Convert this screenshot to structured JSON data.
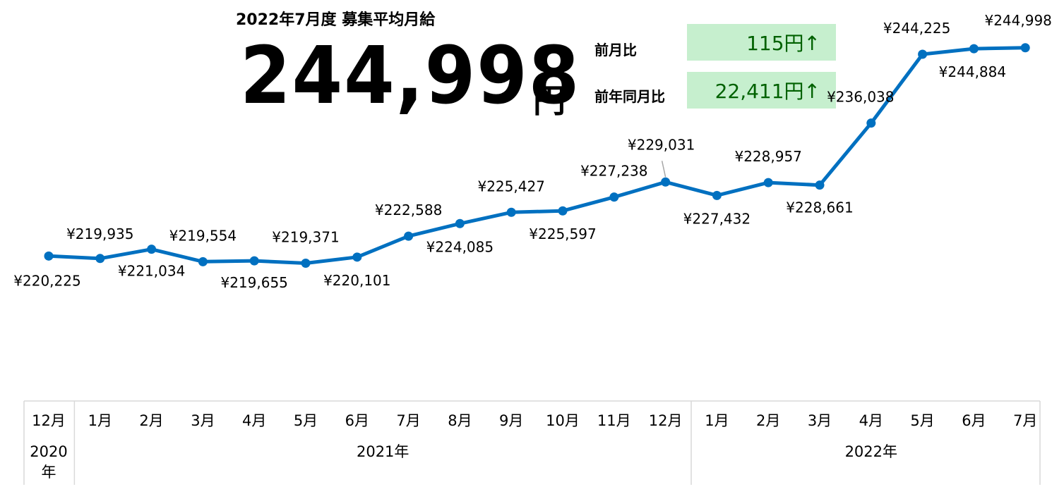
{
  "header": {
    "title": "2022年7月度 募集平均月給",
    "big_value": "244,998",
    "big_unit": "円"
  },
  "comparisons": {
    "mom_label": "前月比",
    "mom_value": "115円↑",
    "yoy_label": "前年同月比",
    "yoy_value": "22,411円↑"
  },
  "colors": {
    "line": "#0070c0",
    "increase_bg": "#c6efce",
    "increase_text": "#006100",
    "axis_border": "#d9d9d9"
  },
  "chart_data": {
    "type": "line",
    "categories": [
      "12月",
      "1月",
      "2月",
      "3月",
      "4月",
      "5月",
      "6月",
      "7月",
      "8月",
      "9月",
      "10月",
      "11月",
      "12月",
      "1月",
      "2月",
      "3月",
      "4月",
      "5月",
      "6月",
      "7月"
    ],
    "year_groups": [
      {
        "label": "2020年",
        "start": 0,
        "end": 0
      },
      {
        "label": "2021年",
        "start": 1,
        "end": 12
      },
      {
        "label": "2022年",
        "start": 13,
        "end": 19
      }
    ],
    "values": [
      220225,
      219935,
      221034,
      219554,
      219655,
      219371,
      220101,
      222588,
      224085,
      225427,
      225597,
      227238,
      229031,
      227432,
      228957,
      228661,
      236038,
      244225,
      244884,
      244998
    ],
    "data_labels": [
      "¥220,225",
      "¥219,935",
      "¥221,034",
      "¥219,554",
      "¥219,655",
      "¥219,371",
      "¥220,101",
      "¥222,588",
      "¥224,085",
      "¥225,427",
      "¥225,597",
      "¥227,238",
      "¥229,031",
      "¥227,432",
      "¥228,957",
      "¥228,661",
      "¥236,038",
      "¥244,225",
      "¥244,884",
      "¥244,998"
    ],
    "ylim": [
      205000,
      249000
    ],
    "grid": false,
    "legend": "none"
  }
}
